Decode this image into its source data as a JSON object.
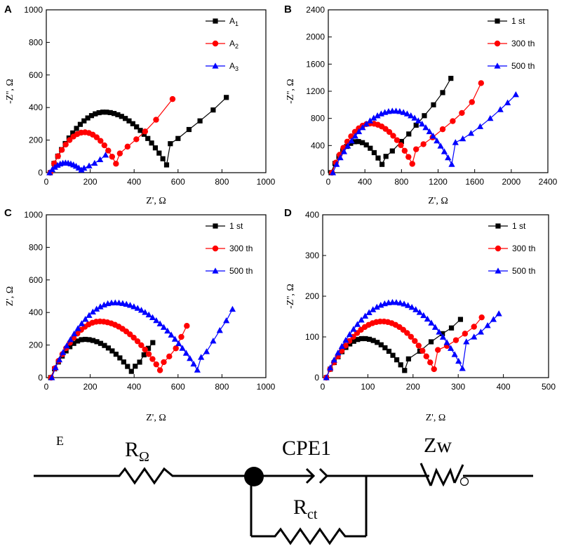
{
  "chart_data": [
    {
      "type": "scatter",
      "panel": "A",
      "xlabel": "Z', Ω",
      "ylabel": "-Z'', Ω",
      "xlim": [
        0,
        1000
      ],
      "ylim": [
        0,
        1000
      ],
      "xticks": [
        0,
        200,
        400,
        600,
        800,
        1000
      ],
      "yticks": [
        0,
        200,
        400,
        600,
        800,
        1000
      ],
      "legend_position": "top-right",
      "series": [
        {
          "name": "A1",
          "label_main": "A",
          "label_sub": "1",
          "color": "#000000",
          "marker": "square",
          "arc": {
            "start": 18,
            "end": 565,
            "height": 372,
            "peak": 0.45
          },
          "tail": [
            [
              565,
              178
            ],
            [
              600,
              210
            ],
            [
              650,
              265
            ],
            [
              700,
              318
            ],
            [
              760,
              385
            ],
            [
              820,
              462
            ]
          ]
        },
        {
          "name": "A2",
          "label_main": "A",
          "label_sub": "2",
          "color": "#ff0000",
          "marker": "circle",
          "arc": {
            "start": 18,
            "end": 335,
            "height": 248,
            "peak": 0.49
          },
          "tail": [
            [
              335,
              118
            ],
            [
              370,
              160
            ],
            [
              410,
              205
            ],
            [
              450,
              253
            ],
            [
              500,
              325
            ],
            [
              575,
              452
            ]
          ]
        },
        {
          "name": "A3",
          "label_main": "A",
          "label_sub": "3",
          "color": "#0000ff",
          "marker": "triangle",
          "arc": {
            "start": 15,
            "end": 172,
            "height": 60,
            "peak": 0.45
          },
          "tail": [
            [
              172,
              28
            ],
            [
              195,
              42
            ],
            [
              220,
              58
            ],
            [
              245,
              80
            ],
            [
              270,
              108
            ]
          ]
        }
      ]
    },
    {
      "type": "scatter",
      "panel": "B",
      "xlabel": "Z', Ω",
      "ylabel": "-Z'', Ω",
      "xlim": [
        0,
        2400
      ],
      "ylim": [
        0,
        2400
      ],
      "xticks": [
        0,
        400,
        800,
        1200,
        1600,
        2000,
        2400
      ],
      "yticks": [
        0,
        400,
        800,
        1200,
        1600,
        2000,
        2400
      ],
      "legend_position": "top-right",
      "series": [
        {
          "name": "1 st",
          "color": "#000000",
          "marker": "square",
          "arc": {
            "start": 30,
            "end": 630,
            "height": 460,
            "peak": 0.47
          },
          "tail": [
            [
              630,
              240
            ],
            [
              700,
              320
            ],
            [
              800,
              460
            ],
            [
              880,
              570
            ],
            [
              960,
              700
            ],
            [
              1050,
              840
            ],
            [
              1150,
              1000
            ],
            [
              1250,
              1180
            ],
            [
              1340,
              1390
            ]
          ]
        },
        {
          "name": "300 th",
          "color": "#ff0000",
          "marker": "circle",
          "arc": {
            "start": 40,
            "end": 960,
            "height": 725,
            "peak": 0.46
          },
          "tail": [
            [
              960,
              345
            ],
            [
              1040,
              420
            ],
            [
              1140,
              520
            ],
            [
              1250,
              640
            ],
            [
              1360,
              760
            ],
            [
              1460,
              880
            ],
            [
              1570,
              1040
            ],
            [
              1670,
              1320
            ]
          ]
        },
        {
          "name": "500 th",
          "color": "#0000ff",
          "marker": "triangle",
          "arc": {
            "start": 50,
            "end": 1390,
            "height": 910,
            "peak": 0.5
          },
          "tail": [
            [
              1390,
              445
            ],
            [
              1470,
              500
            ],
            [
              1560,
              580
            ],
            [
              1660,
              680
            ],
            [
              1770,
              800
            ],
            [
              1880,
              930
            ],
            [
              1960,
              1030
            ],
            [
              2050,
              1150
            ]
          ]
        }
      ]
    },
    {
      "type": "scatter",
      "panel": "C",
      "xlabel": "Z', Ω",
      "ylabel": "Z', Ω",
      "xlim": [
        0,
        1000
      ],
      "ylim": [
        0,
        1000
      ],
      "xticks": [
        0,
        200,
        400,
        600,
        800,
        1000
      ],
      "yticks": [
        0,
        200,
        400,
        600,
        800,
        1000
      ],
      "legend_position": "top-right",
      "series": [
        {
          "name": "1 st",
          "color": "#000000",
          "marker": "square",
          "arc": {
            "start": 20,
            "end": 405,
            "height": 235,
            "peak": 0.4
          },
          "tail": [
            [
              405,
              70
            ],
            [
              425,
              95
            ],
            [
              445,
              140
            ],
            [
              465,
              180
            ],
            [
              485,
              215
            ]
          ]
        },
        {
          "name": "300 th",
          "color": "#ff0000",
          "marker": "circle",
          "arc": {
            "start": 22,
            "end": 535,
            "height": 345,
            "peak": 0.43
          },
          "tail": [
            [
              535,
              95
            ],
            [
              560,
              130
            ],
            [
              590,
              180
            ],
            [
              615,
              250
            ],
            [
              640,
              318
            ]
          ]
        },
        {
          "name": "500 th",
          "color": "#0000ff",
          "marker": "triangle",
          "arc": {
            "start": 25,
            "end": 705,
            "height": 460,
            "peak": 0.42
          },
          "tail": [
            [
              705,
              125
            ],
            [
              730,
              160
            ],
            [
              760,
              225
            ],
            [
              790,
              290
            ],
            [
              820,
              350
            ],
            [
              848,
              420
            ]
          ]
        }
      ]
    },
    {
      "type": "scatter",
      "panel": "D",
      "xlabel": "Z', Ω",
      "ylabel": "-Z'', Ω",
      "xlim": [
        0,
        500
      ],
      "ylim": [
        0,
        400
      ],
      "xticks": [
        0,
        100,
        200,
        300,
        400,
        500
      ],
      "yticks": [
        0,
        100,
        200,
        300,
        400
      ],
      "legend_position": "top-right",
      "series": [
        {
          "name": "1 st",
          "color": "#000000",
          "marker": "square",
          "arc": {
            "start": 8,
            "end": 190,
            "height": 96,
            "peak": 0.45
          },
          "tail": [
            [
              190,
              46
            ],
            [
              215,
              65
            ],
            [
              240,
              88
            ],
            [
              265,
              108
            ],
            [
              285,
              122
            ],
            [
              305,
              143
            ]
          ]
        },
        {
          "name": "300 th",
          "color": "#ff0000",
          "marker": "circle",
          "arc": {
            "start": 8,
            "end": 255,
            "height": 138,
            "peak": 0.5
          },
          "tail": [
            [
              255,
              68
            ],
            [
              275,
              78
            ],
            [
              295,
              92
            ],
            [
              315,
              108
            ],
            [
              335,
              125
            ],
            [
              352,
              148
            ]
          ]
        },
        {
          "name": "500 th",
          "color": "#0000ff",
          "marker": "triangle",
          "arc": {
            "start": 8,
            "end": 318,
            "height": 185,
            "peak": 0.48
          },
          "tail": [
            [
              318,
              88
            ],
            [
              335,
              100
            ],
            [
              350,
              112
            ],
            [
              365,
              128
            ],
            [
              378,
              143
            ],
            [
              390,
              157
            ]
          ]
        }
      ]
    }
  ],
  "circuit": {
    "panel_label": "E",
    "r_ohm_main": "R",
    "r_ohm_sub": "Ω",
    "cpe_label": "CPE1",
    "zw_label": "Zw",
    "rct_main": "R",
    "rct_sub": "ct"
  }
}
